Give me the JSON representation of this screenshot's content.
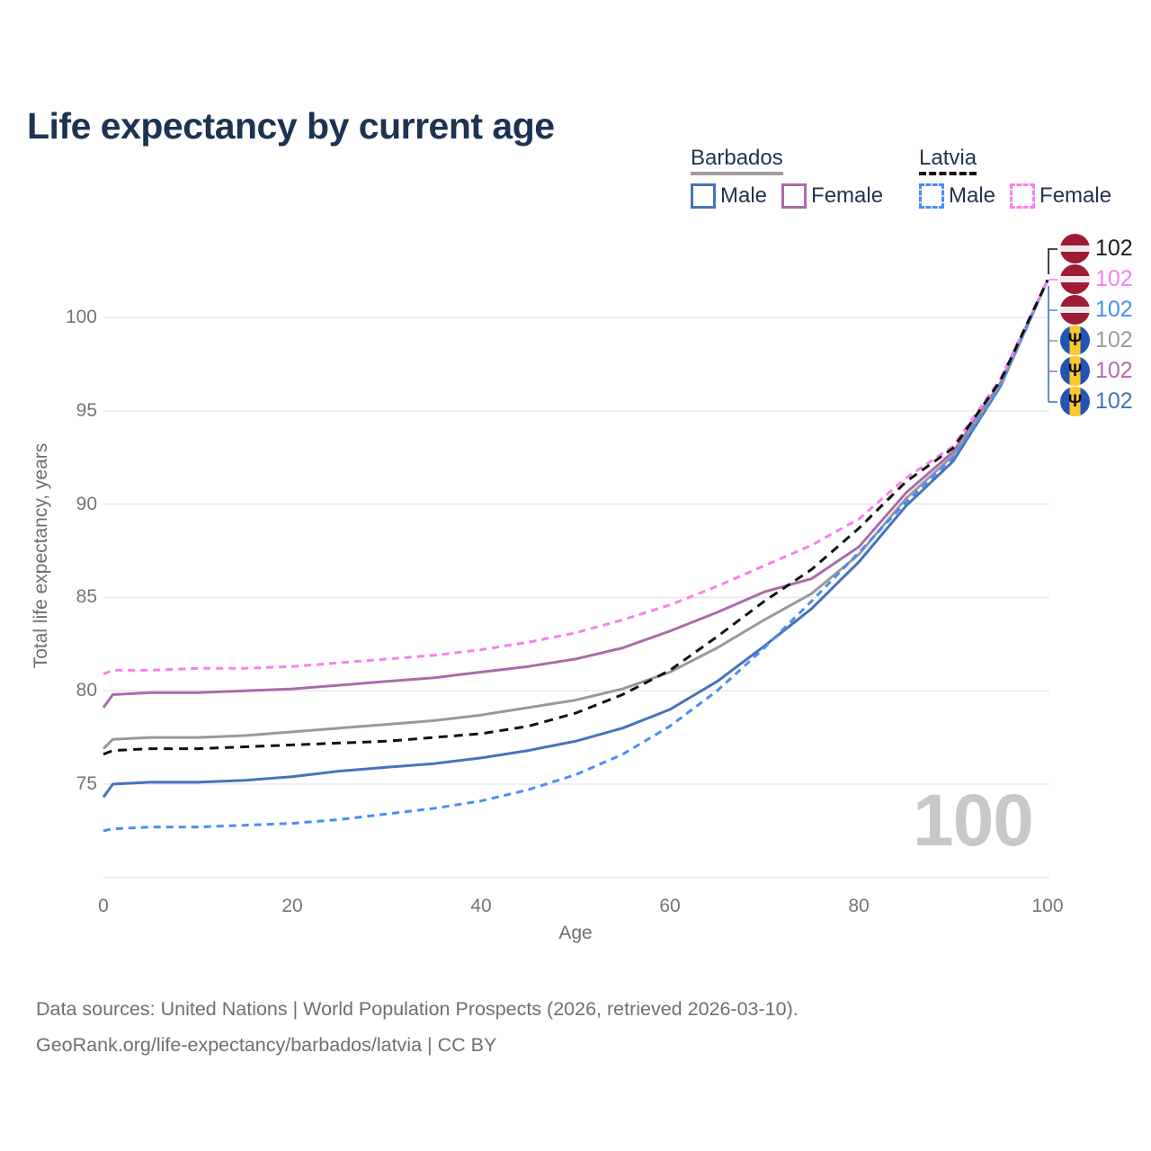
{
  "title": "Life expectancy by current age",
  "legend": {
    "groups": [
      {
        "name": "Barbados",
        "underline_style": "solid",
        "underline_color": "#9e9e9e",
        "items": [
          {
            "label": "Male",
            "color": "#4673bd",
            "line_style": "solid"
          },
          {
            "label": "Female",
            "color": "#a96cab",
            "line_style": "solid"
          }
        ]
      },
      {
        "name": "Latvia",
        "underline_style": "dashed",
        "underline_color": "#111111",
        "items": [
          {
            "label": "Male",
            "color": "#4b8cf7",
            "line_style": "dashed"
          },
          {
            "label": "Female",
            "color": "#fb7ef0",
            "line_style": "dashed"
          }
        ]
      }
    ]
  },
  "chart_data": {
    "type": "line",
    "title": "Life expectancy by current age",
    "xlabel": "Age",
    "ylabel": "Total life expectancy, years",
    "xlim": [
      0,
      100
    ],
    "ylim": [
      70,
      104
    ],
    "xticks": [
      0,
      20,
      40,
      60,
      80,
      100
    ],
    "yticks": [
      75,
      80,
      85,
      90,
      95,
      100
    ],
    "gridlines": [
      70,
      75,
      80,
      85,
      90,
      95,
      100
    ],
    "grid": "horizontal",
    "legend_position": "top-right",
    "x": [
      0,
      1,
      5,
      10,
      15,
      20,
      25,
      30,
      35,
      40,
      45,
      50,
      55,
      60,
      65,
      70,
      75,
      80,
      85,
      90,
      95,
      100
    ],
    "series": [
      {
        "name": "Barbados Male",
        "country": "Barbados",
        "sex": "Male",
        "color": "#4673bd",
        "line_style": "solid",
        "values": [
          74.3,
          75.0,
          75.1,
          75.1,
          75.2,
          75.4,
          75.7,
          75.9,
          76.1,
          76.4,
          76.8,
          77.3,
          78.0,
          79.0,
          80.5,
          82.4,
          84.4,
          86.9,
          89.9,
          92.3,
          96.3,
          102
        ]
      },
      {
        "name": "Barbados Female",
        "country": "Barbados",
        "sex": "Female",
        "color": "#a96cab",
        "line_style": "solid",
        "values": [
          79.1,
          79.8,
          79.9,
          79.9,
          80.0,
          80.1,
          80.3,
          80.5,
          80.7,
          81.0,
          81.3,
          81.7,
          82.3,
          83.2,
          84.2,
          85.3,
          86.0,
          87.7,
          90.6,
          92.8,
          96.5,
          102
        ]
      },
      {
        "name": "Barbados (both sexes)",
        "country": "Barbados",
        "sex": "All",
        "color": "#999999",
        "line_style": "solid",
        "values": [
          76.9,
          77.4,
          77.5,
          77.5,
          77.6,
          77.8,
          78.0,
          78.2,
          78.4,
          78.7,
          79.1,
          79.5,
          80.1,
          81.0,
          82.3,
          83.8,
          85.2,
          87.3,
          90.3,
          92.6,
          96.4,
          102
        ]
      },
      {
        "name": "Latvia Male",
        "country": "Latvia",
        "sex": "Male",
        "color": "#4b8cf7",
        "line_style": "dashed",
        "values": [
          72.5,
          72.6,
          72.7,
          72.7,
          72.8,
          72.9,
          73.1,
          73.4,
          73.7,
          74.1,
          74.7,
          75.5,
          76.6,
          78.1,
          80.0,
          82.3,
          84.8,
          87.4,
          90.1,
          92.5,
          96.3,
          102
        ]
      },
      {
        "name": "Latvia Female",
        "country": "Latvia",
        "sex": "Female",
        "color": "#fb7ef0",
        "line_style": "dashed",
        "values": [
          80.9,
          81.1,
          81.1,
          81.2,
          81.2,
          81.3,
          81.5,
          81.7,
          81.9,
          82.2,
          82.6,
          83.1,
          83.8,
          84.6,
          85.6,
          86.7,
          87.8,
          89.2,
          91.4,
          93.1,
          96.7,
          102
        ]
      },
      {
        "name": "Latvia (both sexes)",
        "country": "Latvia",
        "sex": "All",
        "color": "#111111",
        "line_style": "dashed",
        "values": [
          76.6,
          76.8,
          76.9,
          76.9,
          77.0,
          77.1,
          77.2,
          77.3,
          77.5,
          77.7,
          78.1,
          78.8,
          79.8,
          81.1,
          82.9,
          84.8,
          86.5,
          88.7,
          91.2,
          93.0,
          96.6,
          102
        ]
      }
    ]
  },
  "end_labels": [
    {
      "series": "Latvia (both sexes)",
      "flag": "latvia",
      "value": "102",
      "color": "#1a1a1a"
    },
    {
      "series": "Latvia Female",
      "flag": "latvia",
      "value": "102",
      "color": "#fb7ef0"
    },
    {
      "series": "Latvia Male",
      "flag": "latvia",
      "value": "102",
      "color": "#4b8cf7"
    },
    {
      "series": "Barbados (both sexes)",
      "flag": "barbados",
      "value": "102",
      "color": "#9b9b9b"
    },
    {
      "series": "Barbados Female",
      "flag": "barbados",
      "value": "102",
      "color": "#ad6cae"
    },
    {
      "series": "Barbados Male",
      "flag": "barbados",
      "value": "102",
      "color": "#4273b9"
    }
  ],
  "flag_colors": {
    "latvia_red": "#9d1c34",
    "latvia_white": "#eceaea",
    "barbados_blue": "#2254b8",
    "barbados_gold": "#ffc72c",
    "barbados_trident": "Ψ"
  },
  "watermark_age": "100",
  "footer": {
    "line1": "Data sources: United Nations | World Population Prospects (2026, retrieved 2026-03-10).",
    "line2": "GeoRank.org/life-expectancy/barbados/latvia | CC BY"
  }
}
